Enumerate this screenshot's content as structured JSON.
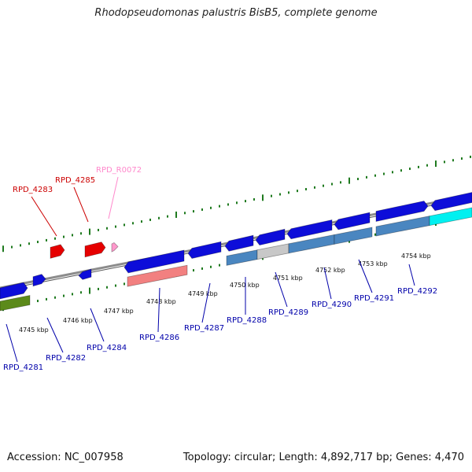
{
  "title": "Rhodopseudomonas palustris BisB5, complete genome",
  "accession": "Accession: NC_007958",
  "summary": "Topology: circular; Length: 4,892,717 bp; Genes: 4,470",
  "colors": {
    "backbone": "#8c8c8c",
    "tick": "#1f7a1f",
    "blue_gene": "#0d0dd9",
    "red_gene": "#e60000",
    "pink_gene": "#ff99cc",
    "salmon_gene": "#f28080",
    "steel_gene": "#4a86c0",
    "grey_gene": "#c8c8c8",
    "cyan_gene": "#00f0f0",
    "olive_gene": "#5c8a1a",
    "label_red": "#cc0000",
    "label_blue": "#0000aa",
    "label_pink": "#ff88cc"
  },
  "scale_labels": [
    "4745 kbp",
    "4746 kbp",
    "4747 kbp",
    "4748 kbp",
    "4749 kbp",
    "4750 kbp",
    "4751 kbp",
    "4752 kbp",
    "4753 kbp",
    "4754 kbp"
  ],
  "genes_top": [
    {
      "id": "RPD_4283",
      "color": "label_red"
    },
    {
      "id": "RPD_4285",
      "color": "label_red"
    },
    {
      "id": "RPD_R0072",
      "color": "label_pink"
    }
  ],
  "genes_bottom": [
    "RPD_4281",
    "RPD_4282",
    "RPD_4284",
    "RPD_4286",
    "RPD_4287",
    "RPD_4288",
    "RPD_4289",
    "RPD_4290",
    "RPD_4291",
    "RPD_4292"
  ]
}
